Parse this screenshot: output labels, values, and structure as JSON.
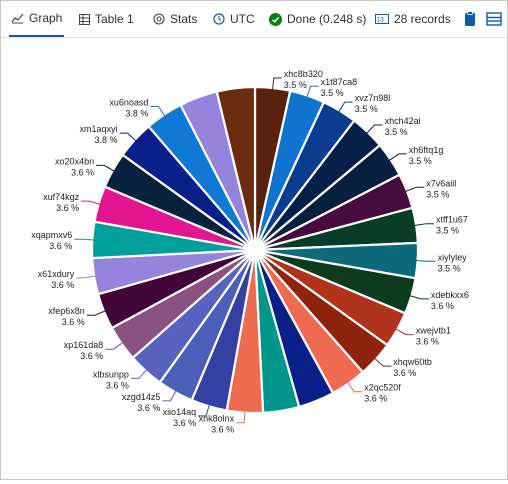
{
  "toolbar": {
    "tabs": [
      {
        "label": "Graph",
        "icon": "line-chart-icon",
        "active": true
      },
      {
        "label": "Table 1",
        "icon": "table-icon",
        "active": false
      },
      {
        "label": "Stats",
        "icon": "stats-icon",
        "active": false
      }
    ],
    "timezone": "UTC",
    "status": "Done (0.248 s)",
    "records": "28 records",
    "accent": "#0b5cad",
    "status_color": "#107c10"
  },
  "chart_data": {
    "type": "pie",
    "slices": [
      {
        "name": "xhc8b320",
        "label": "3.5 %",
        "value": 3.5,
        "color": "#58220f"
      },
      {
        "name": "x1t87ca8",
        "label": "3.5 %",
        "value": 3.5,
        "color": "#0f74d0"
      },
      {
        "name": "xvz7n98l",
        "label": "3.5 %",
        "value": 3.5,
        "color": "#0b3c8f"
      },
      {
        "name": "xhch42ai",
        "label": "3.5 %",
        "value": 3.5,
        "color": "#06204a"
      },
      {
        "name": "xh6ftq1g",
        "label": "3.5 %",
        "value": 3.5,
        "color": "#082040"
      },
      {
        "name": "x7v6aiil",
        "label": "3.5 %",
        "value": 3.5,
        "color": "#470b3d"
      },
      {
        "name": "xtff1u67",
        "label": "3.5 %",
        "value": 3.5,
        "color": "#073d26"
      },
      {
        "name": "xiylyley",
        "label": "3.5 %",
        "value": 3.5,
        "color": "#0c6a7a"
      },
      {
        "name": "xdebkxx6",
        "label": "3.6 %",
        "value": 3.6,
        "color": "#0e3a1e"
      },
      {
        "name": "xwejvtb1",
        "label": "3.6 %",
        "value": 3.6,
        "color": "#b0331c"
      },
      {
        "name": "xhqw60tb",
        "label": "3.6 %",
        "value": 3.6,
        "color": "#90230e"
      },
      {
        "name": "x2qc520f",
        "label": "3.6 %",
        "value": 3.6,
        "color": "#ee6a51"
      },
      {
        "name": "",
        "label": "",
        "value": 3.6,
        "color": "#0a1f8a"
      },
      {
        "name": "",
        "label": "",
        "value": 3.6,
        "color": "#00978a"
      },
      {
        "name": "xnk8olnx",
        "label": "3.6 %",
        "value": 3.6,
        "color": "#ed6c50"
      },
      {
        "name": "xiio14aq",
        "label": "3.6 %",
        "value": 3.6,
        "color": "#3540a3"
      },
      {
        "name": "xzgd14z5",
        "label": "3.6 %",
        "value": 3.6,
        "color": "#4b5fb8"
      },
      {
        "name": "xlbsunpp",
        "label": "3.6 %",
        "value": 3.6,
        "color": "#5863c0"
      },
      {
        "name": "xp161da8",
        "label": "3.6 %",
        "value": 3.6,
        "color": "#8a5280"
      },
      {
        "name": "xfep6x8n",
        "label": "3.6 %",
        "value": 3.6,
        "color": "#420537"
      },
      {
        "name": "x61xdury",
        "label": "3.6 %",
        "value": 3.6,
        "color": "#9584dc"
      },
      {
        "name": "xqapmxv6",
        "label": "3.6 %",
        "value": 3.6,
        "color": "#00a19b"
      },
      {
        "name": "xuf74kgz",
        "label": "3.6 %",
        "value": 3.6,
        "color": "#e31590"
      },
      {
        "name": "xo20x4bn",
        "label": "3.6 %",
        "value": 3.6,
        "color": "#06223c"
      },
      {
        "name": "xm1aqxyi",
        "label": "3.8 %",
        "value": 3.8,
        "color": "#0a1f8a"
      },
      {
        "name": "xu6noasd",
        "label": "3.8 %",
        "value": 3.8,
        "color": "#0f79d4"
      },
      {
        "name": "",
        "label": "",
        "value": 3.8,
        "color": "#9584dc"
      },
      {
        "name": "",
        "label": "",
        "value": 3.8,
        "color": "#6b2b0e"
      }
    ],
    "label_color": "#222222"
  }
}
